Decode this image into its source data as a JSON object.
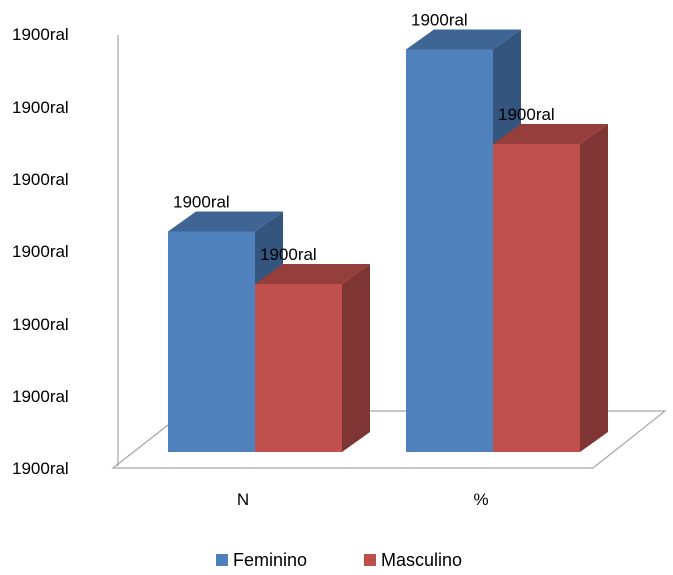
{
  "chart_data": {
    "type": "bar",
    "categories": [
      "N",
      "%"
    ],
    "y_tick_labels": [
      "1900ral",
      "1900ral",
      "1900ral",
      "1900ral",
      "1900ral",
      "1900ral",
      "1900ral"
    ],
    "ylim": [
      0,
      6
    ],
    "series": [
      {
        "name": "Feminino",
        "values": [
          3.15,
          5.75
        ],
        "labels": [
          "1900ral",
          "1900ral"
        ],
        "color": "#4F81BD"
      },
      {
        "name": "Masculino",
        "values": [
          2.4,
          4.4
        ],
        "labels": [
          "1900ral",
          "1900ral"
        ],
        "color": "#C0504D"
      }
    ],
    "legend_position": "bottom",
    "grid": false,
    "style": "3d-clustered-column"
  }
}
